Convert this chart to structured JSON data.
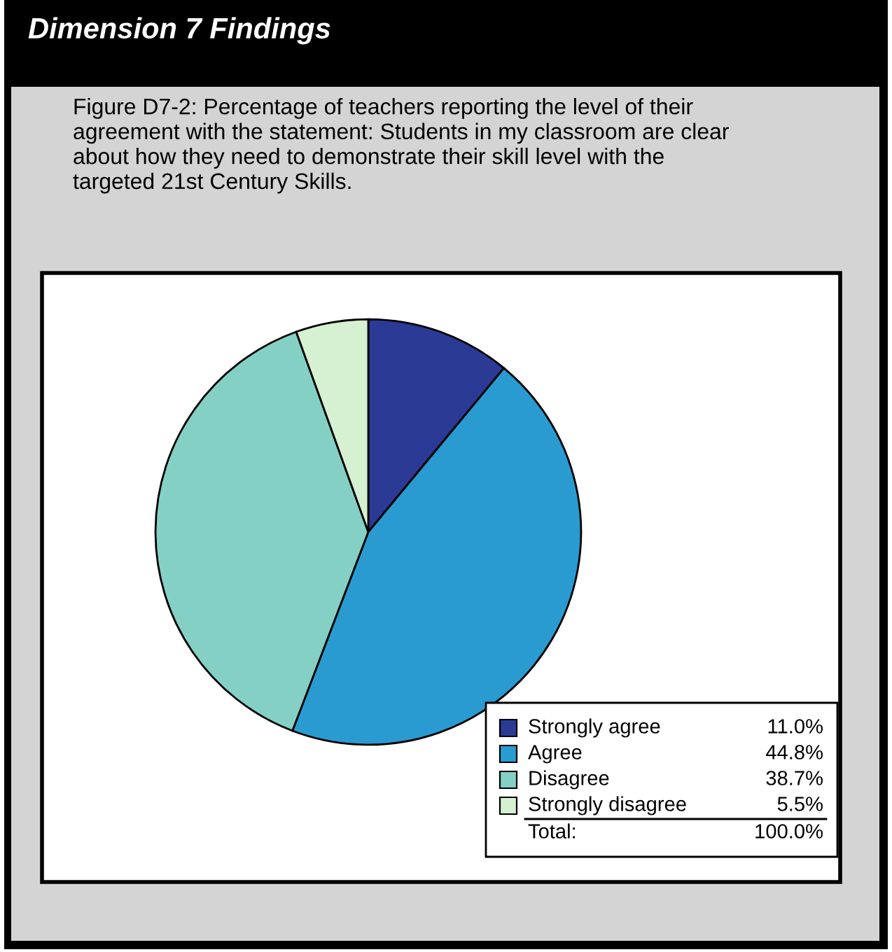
{
  "chart_data": {
    "type": "pie",
    "title": "Dimension 7 Findings",
    "subtitle": "Figure D7-2: Percentage of teachers reporting the level of their agreement with the statement: Students in my classroom are clear about how they need to demonstrate their skill level with the targeted 21st Century Skills.",
    "categories": [
      "Strongly agree",
      "Agree",
      "Disagree",
      "Strongly disagree"
    ],
    "values": [
      11.0,
      44.8,
      38.7,
      5.5
    ],
    "colors": [
      "#2b3a94",
      "#2a9bd0",
      "#84d0c4",
      "#d6f0d2"
    ],
    "value_labels": [
      "11.0%",
      "44.8%",
      "38.7%",
      "5.5%"
    ],
    "totals": [
      "100.0%"
    ],
    "annotations": [
      "Total:"
    ],
    "legend": "bottom right"
  }
}
